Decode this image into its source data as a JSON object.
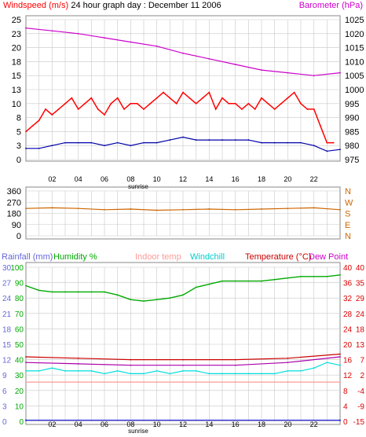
{
  "title": "24 hour graph day : December 11 2006",
  "x_ticks": [
    "02",
    "04",
    "06",
    "08",
    "10",
    "12",
    "14",
    "16",
    "18",
    "20",
    "22"
  ],
  "sunrise_label": "sunrise",
  "colors": {
    "wind": "#ff0000",
    "gust_avg": "#0000aa",
    "barometer": "#cc00cc",
    "direction": "#cc6600",
    "humidity": "#00aa00",
    "rain": "#0000cc",
    "indoor": "#ff9999",
    "windchill": "#00dddd",
    "temperature": "#cc0000",
    "dewpoint": "#aa00aa",
    "grid": "#c8c8c8",
    "rain_axis": "#6666dd",
    "humidity_axis": "#00aa00",
    "temp_axis": "#dd0000"
  },
  "chart_data": [
    {
      "type": "line",
      "name": "wind-barometer",
      "title": "24 hour graph day : December 11 2006",
      "left_axis_label": "Windspeed (m/s)",
      "right_axis_label": "Barometer (hPa)",
      "left_ticks": [
        25,
        23,
        20,
        18,
        15,
        13,
        10,
        8,
        5,
        3,
        0
      ],
      "right_ticks": [
        1025,
        1020,
        1015,
        1010,
        1005,
        1000,
        995,
        990,
        985,
        980,
        975
      ],
      "ylim_left": [
        0,
        25
      ],
      "ylim_right": [
        975,
        1025
      ],
      "xlim": [
        0,
        24
      ],
      "series": [
        {
          "axis": "left",
          "color_key": "wind",
          "x": [
            0,
            0.5,
            1,
            1.5,
            2,
            2.5,
            3,
            3.5,
            4,
            4.5,
            5,
            5.5,
            6,
            6.5,
            7,
            7.5,
            8,
            8.5,
            9,
            9.5,
            10,
            10.5,
            11,
            11.5,
            12,
            12.5,
            13,
            13.5,
            14,
            14.5,
            15,
            15.5,
            16,
            16.5,
            17,
            17.5,
            18,
            18.5,
            19,
            19.5,
            20,
            20.5,
            21,
            21.5,
            22,
            22.5,
            23,
            23.5
          ],
          "values": [
            5,
            6,
            7,
            9,
            8,
            9,
            10,
            11,
            9,
            10,
            11,
            9,
            8,
            10,
            11,
            9,
            10,
            10,
            9,
            10,
            11,
            12,
            11,
            10,
            12,
            11,
            10,
            11,
            12,
            9,
            11,
            10,
            10,
            9,
            10,
            9,
            11,
            10,
            9,
            10,
            11,
            12,
            10,
            9,
            9,
            6,
            3,
            3
          ]
        },
        {
          "axis": "left",
          "color_key": "gust_avg",
          "x": [
            0,
            1,
            2,
            3,
            4,
            5,
            6,
            7,
            8,
            9,
            10,
            11,
            12,
            13,
            14,
            15,
            16,
            17,
            18,
            19,
            20,
            21,
            22,
            23,
            24
          ],
          "values": [
            2,
            2,
            2.5,
            3,
            3,
            3,
            2.5,
            3,
            2.5,
            3,
            3,
            3.5,
            4,
            3.5,
            3.5,
            3.5,
            3.5,
            3.5,
            3,
            3,
            3,
            3,
            2.5,
            1.5,
            1.8
          ]
        },
        {
          "axis": "right",
          "color_key": "barometer",
          "x": [
            0,
            2,
            4,
            6,
            8,
            10,
            12,
            14,
            16,
            18,
            20,
            22,
            24
          ],
          "values": [
            1022,
            1021,
            1020,
            1018.5,
            1017,
            1015.5,
            1013,
            1011,
            1009,
            1007,
            1006,
            1005,
            1006
          ]
        }
      ]
    },
    {
      "type": "line",
      "name": "wind-direction",
      "left_ticks": [
        360,
        270,
        180,
        90,
        0
      ],
      "right_ticks": [
        "N",
        "W",
        "S",
        "E",
        "N"
      ],
      "ylim": [
        0,
        360
      ],
      "xlim": [
        0,
        24
      ],
      "series": [
        {
          "color_key": "direction",
          "x": [
            0,
            2,
            4,
            6,
            8,
            10,
            12,
            14,
            16,
            18,
            20,
            22,
            24
          ],
          "values": [
            220,
            225,
            220,
            210,
            215,
            205,
            210,
            215,
            210,
            215,
            220,
            225,
            210
          ]
        }
      ]
    },
    {
      "type": "line",
      "name": "humidity-temperature",
      "legend": [
        "Rainfall (mm)",
        "Humidity %",
        "Indoor temp",
        "Windchill",
        "Temperature (°C)",
        "Dew Point"
      ],
      "left1_ticks": [
        30,
        27,
        24,
        21,
        18,
        15,
        12,
        9,
        6,
        3,
        0
      ],
      "left2_ticks": [
        100,
        90,
        80,
        70,
        60,
        50,
        40,
        30,
        20,
        10,
        0
      ],
      "right1_ticks": [
        40,
        36,
        32,
        28,
        24,
        20,
        16,
        12,
        8,
        4,
        0
      ],
      "right2_ticks": [
        40,
        35,
        29,
        24,
        18,
        13,
        7,
        2,
        -4,
        -9,
        -15
      ],
      "ylim_rain": [
        0,
        30
      ],
      "ylim_humidity": [
        0,
        100
      ],
      "ylim_temp": [
        -15,
        40
      ],
      "xlim": [
        0,
        24
      ],
      "series": [
        {
          "name": "Humidity %",
          "color_key": "humidity",
          "axis": "humidity",
          "x": [
            0,
            1,
            2,
            3,
            4,
            5,
            6,
            7,
            8,
            9,
            10,
            11,
            12,
            13,
            14,
            15,
            16,
            17,
            18,
            19,
            20,
            21,
            22,
            23,
            24
          ],
          "values": [
            88,
            85,
            84,
            84,
            84,
            84,
            84,
            82,
            79,
            78,
            79,
            80,
            82,
            87,
            89,
            91,
            91,
            91,
            91,
            92,
            93,
            94,
            94,
            94,
            95
          ]
        },
        {
          "name": "Rainfall (mm)",
          "color_key": "rain",
          "axis": "rain",
          "x": [
            0,
            24
          ],
          "values": [
            0.2,
            0.2
          ]
        },
        {
          "name": "Indoor temp",
          "color_key": "indoor",
          "axis": "temp",
          "x": [
            0,
            4,
            8,
            12,
            16,
            20,
            24
          ],
          "values": [
            -1,
            -1,
            -1,
            -1,
            -1,
            -1,
            -1
          ]
        },
        {
          "name": "Windchill",
          "color_key": "windchill",
          "axis": "temp",
          "x": [
            0,
            1,
            2,
            3,
            4,
            5,
            6,
            7,
            8,
            9,
            10,
            11,
            12,
            13,
            14,
            15,
            16,
            17,
            18,
            19,
            20,
            21,
            22,
            23,
            24
          ],
          "values": [
            3,
            3,
            4,
            3,
            3,
            3,
            2,
            3,
            2,
            2,
            3,
            2,
            3,
            3,
            2,
            2,
            2,
            2,
            2,
            2,
            3,
            3,
            4,
            6,
            5
          ]
        },
        {
          "name": "Temperature (°C)",
          "color_key": "temperature",
          "axis": "temp",
          "x": [
            0,
            4,
            8,
            12,
            16,
            20,
            24
          ],
          "values": [
            8,
            7.5,
            7,
            7,
            7,
            7.5,
            9
          ]
        },
        {
          "name": "Dew Point",
          "color_key": "dewpoint",
          "axis": "temp",
          "x": [
            0,
            4,
            8,
            12,
            16,
            20,
            24
          ],
          "values": [
            6,
            5.5,
            5,
            5,
            5,
            6,
            8
          ]
        }
      ]
    }
  ]
}
